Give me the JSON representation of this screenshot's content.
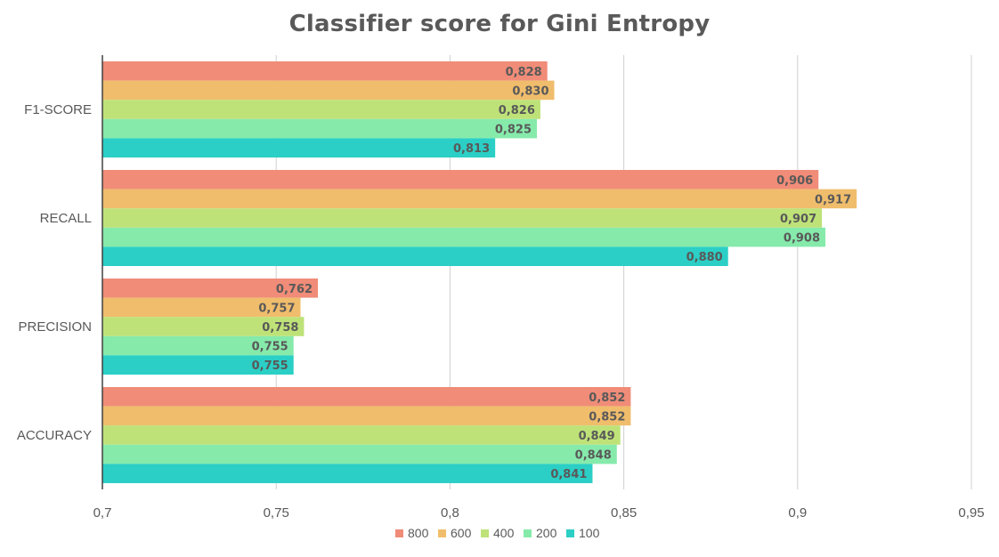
{
  "chart_data": {
    "type": "bar",
    "orientation": "horizontal",
    "title": "Classifier score for Gini Entropy",
    "xlabel": "",
    "ylabel": "",
    "categories": [
      "F1-SCORE",
      "RECALL",
      "PRECISION",
      "ACCURACY"
    ],
    "series": [
      {
        "name": "800",
        "color": "#f08c78",
        "values": [
          0.828,
          0.906,
          0.762,
          0.852
        ],
        "labels": [
          "0,828",
          "0,906",
          "0,762",
          "0,852"
        ]
      },
      {
        "name": "600",
        "color": "#f0bd6c",
        "values": [
          0.83,
          0.917,
          0.757,
          0.852
        ],
        "labels": [
          "0,830",
          "0,917",
          "0,757",
          "0,852"
        ]
      },
      {
        "name": "400",
        "color": "#bee278",
        "values": [
          0.826,
          0.907,
          0.758,
          0.849
        ],
        "labels": [
          "0,826",
          "0,907",
          "0,758",
          "0,849"
        ]
      },
      {
        "name": "200",
        "color": "#86eaab",
        "values": [
          0.825,
          0.908,
          0.755,
          0.848
        ],
        "labels": [
          "0,825",
          "0,908",
          "0,755",
          "0,848"
        ]
      },
      {
        "name": "100",
        "color": "#2bcfc6",
        "values": [
          0.813,
          0.88,
          0.755,
          0.841
        ],
        "labels": [
          "0,813",
          "0,880",
          "0,755",
          "0,841"
        ]
      }
    ],
    "xlim": [
      0.7,
      0.95
    ],
    "xticks": [
      0.7,
      0.75,
      0.8,
      0.85,
      0.9,
      0.95
    ],
    "xtick_labels": [
      "0,7",
      "0,75",
      "0,8",
      "0,85",
      "0,9",
      "0,95"
    ],
    "grid": true,
    "legend_position": "bottom",
    "data_labels": true
  }
}
